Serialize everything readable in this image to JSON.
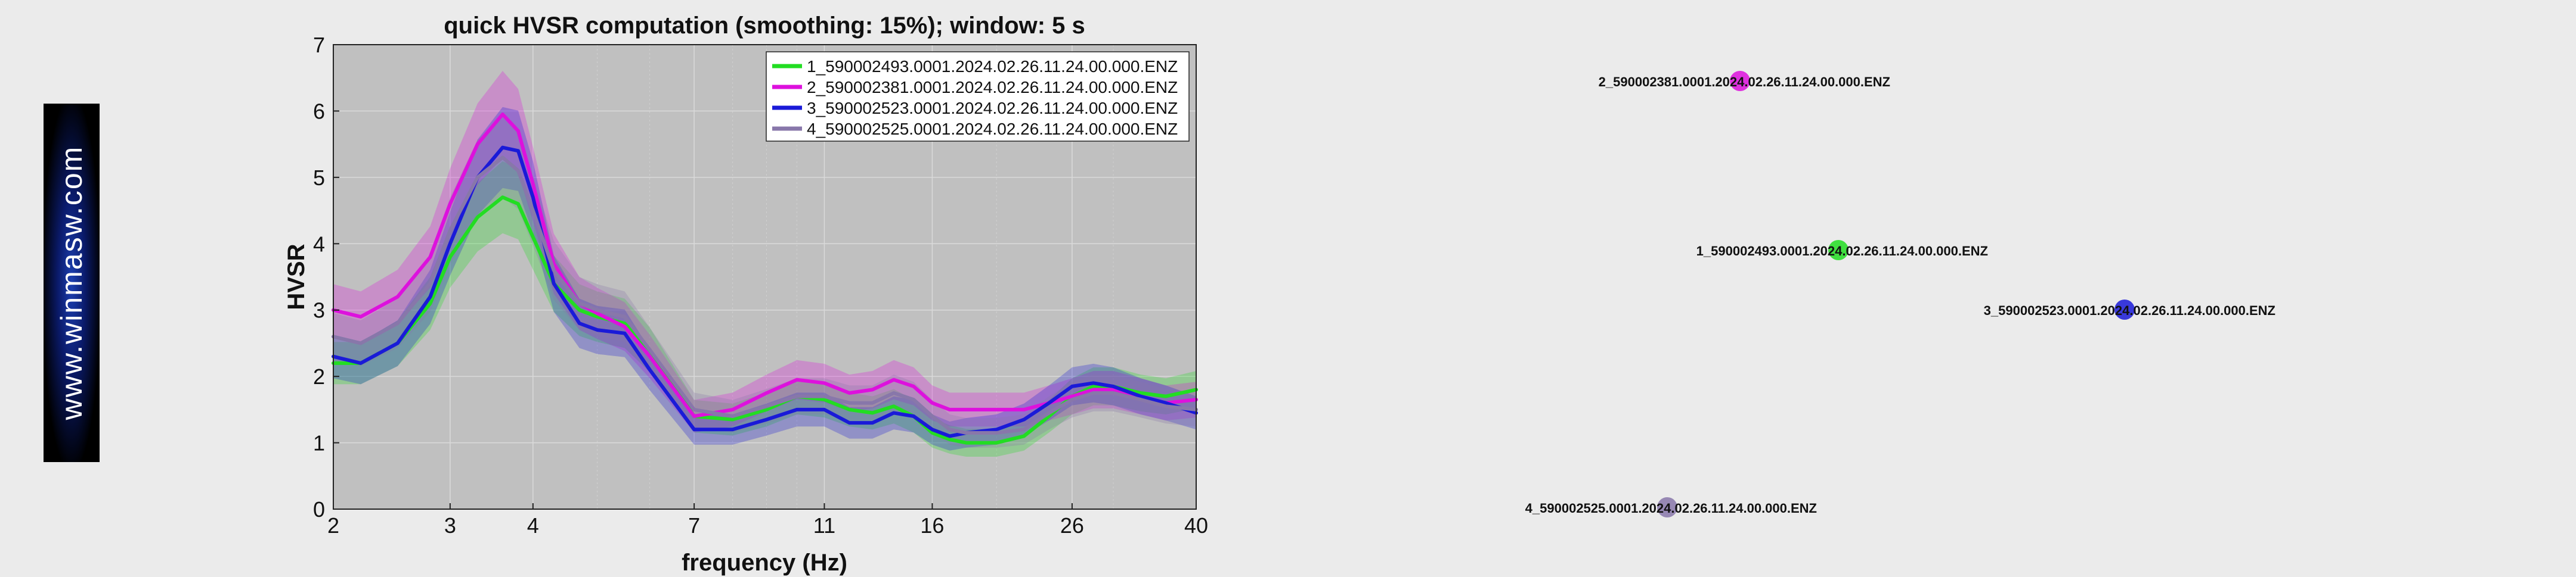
{
  "logo": {
    "text": "www.winmasw.com"
  },
  "chart_data": {
    "type": "line",
    "title": "quick HVSR computation (smoothing: 15%); window: 5 s",
    "xlabel": "frequency (Hz)",
    "ylabel": "HVSR",
    "xscale": "log",
    "xlim": [
      2,
      40
    ],
    "ylim": [
      0,
      7
    ],
    "xticks": [
      2,
      3,
      4,
      7,
      11,
      16,
      26,
      40
    ],
    "yticks": [
      0,
      1,
      2,
      3,
      4,
      5,
      6,
      7
    ],
    "grid": true,
    "legend_position": "top-right",
    "x": [
      2,
      2.2,
      2.5,
      2.8,
      3.0,
      3.3,
      3.6,
      3.8,
      4.0,
      4.3,
      4.7,
      5.0,
      5.5,
      6.0,
      7.0,
      8.0,
      9.0,
      10.0,
      11.0,
      12.0,
      13.0,
      14.0,
      15.0,
      16.0,
      17.0,
      18.0,
      20.0,
      22.0,
      24.0,
      26.0,
      28.0,
      30.0,
      33.0,
      36.0,
      40.0
    ],
    "series": [
      {
        "name": "1_590002493.0001.2024.02.26.11.24.00.000.ENZ",
        "color": "#22dd22",
        "values": [
          2.2,
          2.2,
          2.5,
          3.1,
          3.8,
          4.4,
          4.7,
          4.6,
          4.1,
          3.4,
          3.0,
          2.9,
          2.8,
          2.4,
          1.4,
          1.35,
          1.5,
          1.7,
          1.65,
          1.5,
          1.45,
          1.55,
          1.4,
          1.15,
          1.05,
          1.0,
          1.0,
          1.1,
          1.4,
          1.7,
          1.85,
          1.85,
          1.75,
          1.7,
          1.8
        ]
      },
      {
        "name": "2_590002381.0001.2024.02.26.11.24.00.000.ENZ",
        "color": "#dd11dd",
        "values": [
          3.0,
          2.9,
          3.2,
          3.8,
          4.6,
          5.5,
          5.95,
          5.7,
          4.9,
          3.7,
          3.1,
          2.95,
          2.75,
          2.3,
          1.4,
          1.5,
          1.75,
          1.95,
          1.9,
          1.75,
          1.8,
          1.95,
          1.85,
          1.6,
          1.5,
          1.5,
          1.5,
          1.5,
          1.6,
          1.7,
          1.8,
          1.8,
          1.7,
          1.6,
          1.65
        ]
      },
      {
        "name": "3_590002523.0001.2024.02.26.11.24.00.000.ENZ",
        "color": "#1a1ad8",
        "values": [
          2.3,
          2.2,
          2.5,
          3.2,
          4.0,
          5.0,
          5.45,
          5.4,
          4.7,
          3.4,
          2.8,
          2.7,
          2.65,
          2.1,
          1.2,
          1.2,
          1.35,
          1.5,
          1.5,
          1.3,
          1.3,
          1.45,
          1.4,
          1.2,
          1.1,
          1.15,
          1.2,
          1.35,
          1.6,
          1.85,
          1.9,
          1.85,
          1.7,
          1.6,
          1.45
        ]
      },
      {
        "name": "4_590002525.0001.2024.02.26.11.24.00.000.ENZ",
        "color": "#8877aa",
        "values": [
          2.6,
          2.5,
          2.8,
          3.4,
          4.2,
          5.0,
          5.3,
          5.1,
          4.5,
          3.6,
          3.1,
          3.0,
          2.9,
          2.4,
          1.5,
          1.4,
          1.55,
          1.7,
          1.7,
          1.6,
          1.6,
          1.75,
          1.65,
          1.4,
          1.2,
          1.15,
          1.15,
          1.2,
          1.45,
          1.65,
          1.75,
          1.75,
          1.65,
          1.55,
          1.5
        ]
      }
    ]
  },
  "station_map": {
    "stations": [
      {
        "label": "2_590002381.0001.2024.02.26.11.24.00.000.ENZ",
        "color": "#dd11dd"
      },
      {
        "label": "1_590002493.0001.2024.02.26.11.24.00.000.ENZ",
        "color": "#22dd22"
      },
      {
        "label": "3_590002523.0001.2024.02.26.11.24.00.000.ENZ",
        "color": "#1a1ad8"
      },
      {
        "label": "4_590002525.0001.2024.02.26.11.24.00.000.ENZ",
        "color": "#8877aa"
      }
    ]
  }
}
